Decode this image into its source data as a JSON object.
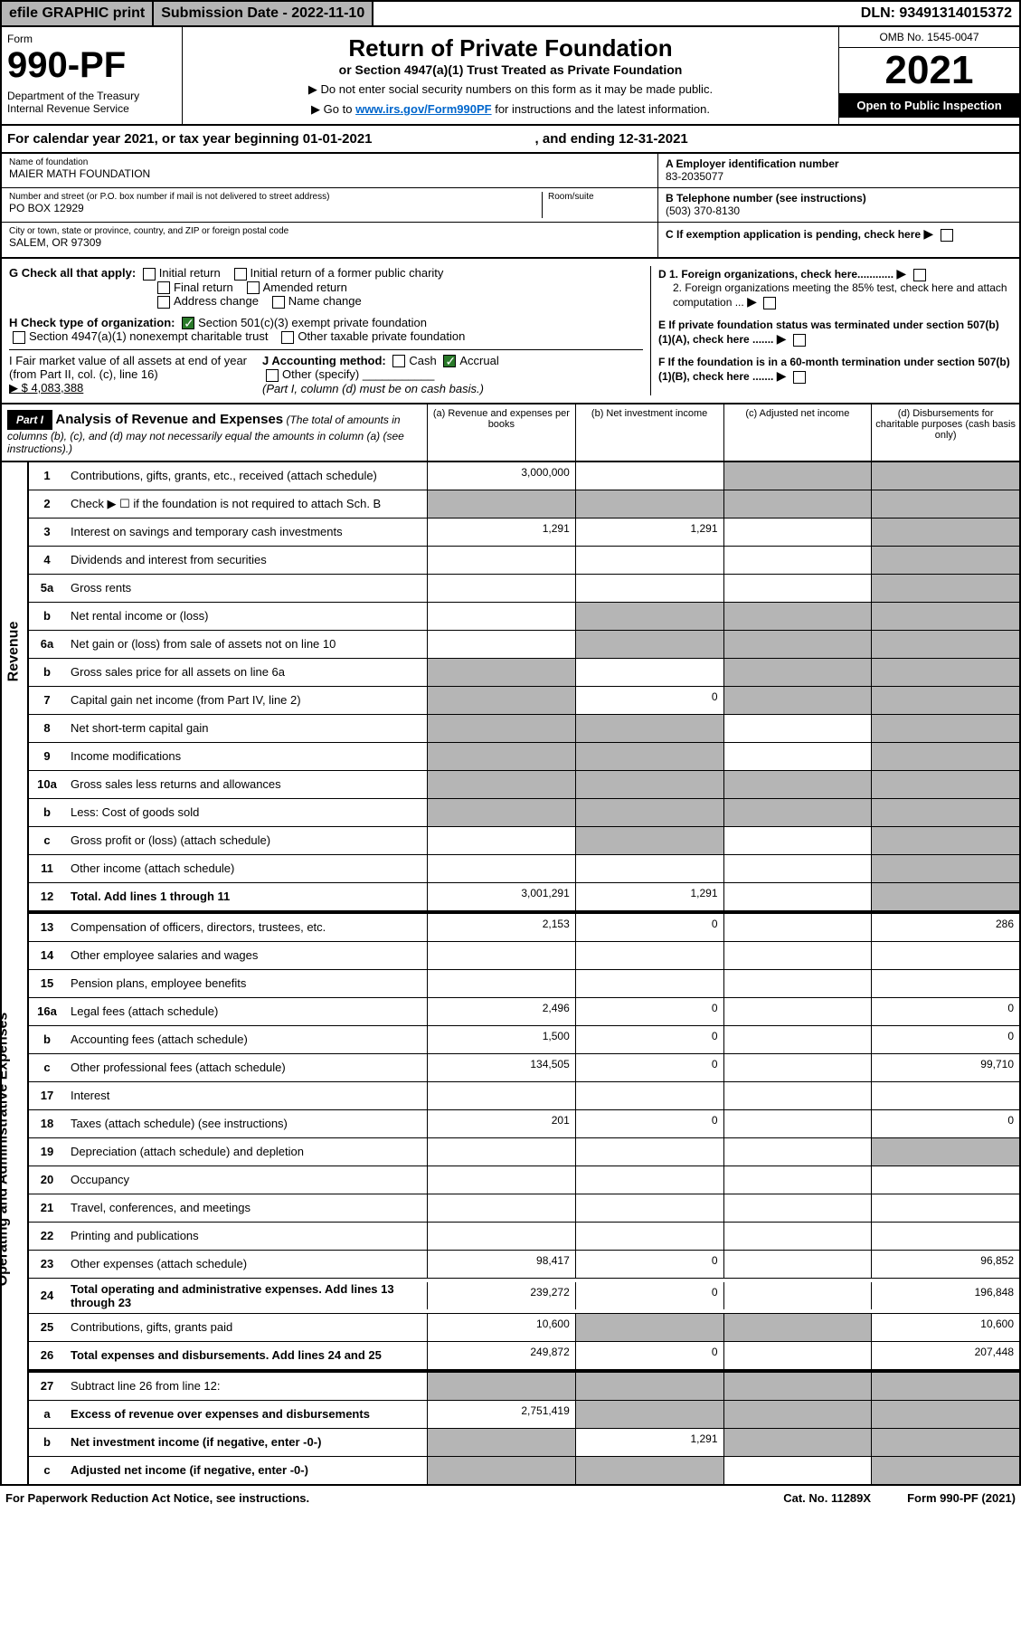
{
  "topbar": {
    "efile": "efile GRAPHIC print",
    "submission": "Submission Date - 2022-11-10",
    "dln": "DLN: 93491314015372"
  },
  "header": {
    "form_label": "Form",
    "form_no": "990-PF",
    "dept": "Department of the Treasury\nInternal Revenue Service",
    "title": "Return of Private Foundation",
    "subtitle": "or Section 4947(a)(1) Trust Treated as Private Foundation",
    "note1": "▶ Do not enter social security numbers on this form as it may be made public.",
    "note2_pre": "▶ Go to ",
    "note2_link": "www.irs.gov/Form990PF",
    "note2_post": " for instructions and the latest information.",
    "omb": "OMB No. 1545-0047",
    "year": "2021",
    "open": "Open to Public Inspection"
  },
  "calyear": {
    "pre": "For calendar year 2021, or tax year beginning 01-01-2021",
    "end": ", and ending 12-31-2021"
  },
  "info": {
    "name_label": "Name of foundation",
    "name": "MAIER MATH FOUNDATION",
    "addr_label": "Number and street (or P.O. box number if mail is not delivered to street address)",
    "addr": "PO BOX 12929",
    "room_label": "Room/suite",
    "city_label": "City or town, state or province, country, and ZIP or foreign postal code",
    "city": "SALEM, OR  97309",
    "a_label": "A Employer identification number",
    "a_val": "83-2035077",
    "b_label": "B Telephone number (see instructions)",
    "b_val": "(503) 370-8130",
    "c_label": "C If exemption application is pending, check here",
    "d1": "D 1. Foreign organizations, check here............",
    "d2": "2. Foreign organizations meeting the 85% test, check here and attach computation ...",
    "e": "E  If private foundation status was terminated under section 507(b)(1)(A), check here .......",
    "f": "F  If the foundation is in a 60-month termination under section 507(b)(1)(B), check here ......."
  },
  "checks": {
    "g": "G Check all that apply:",
    "g_opts": [
      "Initial return",
      "Initial return of a former public charity",
      "Final return",
      "Amended return",
      "Address change",
      "Name change"
    ],
    "h": "H Check type of organization:",
    "h1": "Section 501(c)(3) exempt private foundation",
    "h2": "Section 4947(a)(1) nonexempt charitable trust",
    "h3": "Other taxable private foundation",
    "i": "I Fair market value of all assets at end of year (from Part II, col. (c), line 16)",
    "i_val": "▶ $  4,083,388",
    "j": "J Accounting method:",
    "j_cash": "Cash",
    "j_accrual": "Accrual",
    "j_other": "Other (specify)",
    "j_note": "(Part I, column (d) must be on cash basis.)"
  },
  "part1": {
    "label": "Part I",
    "title": "Analysis of Revenue and Expenses",
    "note": "(The total of amounts in columns (b), (c), and (d) may not necessarily equal the amounts in column (a) (see instructions).)",
    "cols": {
      "a": "(a)  Revenue and expenses per books",
      "b": "(b)  Net investment income",
      "c": "(c)  Adjusted net income",
      "d": "(d)  Disbursements for charitable purposes (cash basis only)"
    }
  },
  "sides": {
    "revenue": "Revenue",
    "expenses": "Operating and Administrative Expenses"
  },
  "rows": [
    {
      "no": "1",
      "desc": "Contributions, gifts, grants, etc., received (attach schedule)",
      "a": "3,000,000",
      "b": "",
      "c": "grey",
      "d": "grey"
    },
    {
      "no": "2",
      "desc": "Check ▶ ☐ if the foundation is not required to attach Sch. B",
      "a": "grey",
      "b": "grey",
      "c": "grey",
      "d": "grey"
    },
    {
      "no": "3",
      "desc": "Interest on savings and temporary cash investments",
      "a": "1,291",
      "b": "1,291",
      "c": "",
      "d": "grey"
    },
    {
      "no": "4",
      "desc": "Dividends and interest from securities",
      "a": "",
      "b": "",
      "c": "",
      "d": "grey"
    },
    {
      "no": "5a",
      "desc": "Gross rents",
      "a": "",
      "b": "",
      "c": "",
      "d": "grey"
    },
    {
      "no": "b",
      "desc": "Net rental income or (loss)",
      "a": "",
      "b": "grey",
      "c": "grey",
      "d": "grey"
    },
    {
      "no": "6a",
      "desc": "Net gain or (loss) from sale of assets not on line 10",
      "a": "",
      "b": "grey",
      "c": "grey",
      "d": "grey"
    },
    {
      "no": "b",
      "desc": "Gross sales price for all assets on line 6a",
      "a": "grey",
      "b": "",
      "c": "grey",
      "d": "grey"
    },
    {
      "no": "7",
      "desc": "Capital gain net income (from Part IV, line 2)",
      "a": "grey",
      "b": "0",
      "c": "grey",
      "d": "grey"
    },
    {
      "no": "8",
      "desc": "Net short-term capital gain",
      "a": "grey",
      "b": "grey",
      "c": "",
      "d": "grey"
    },
    {
      "no": "9",
      "desc": "Income modifications",
      "a": "grey",
      "b": "grey",
      "c": "",
      "d": "grey"
    },
    {
      "no": "10a",
      "desc": "Gross sales less returns and allowances",
      "a": "grey",
      "b": "grey",
      "c": "grey",
      "d": "grey"
    },
    {
      "no": "b",
      "desc": "Less: Cost of goods sold",
      "a": "grey",
      "b": "grey",
      "c": "grey",
      "d": "grey"
    },
    {
      "no": "c",
      "desc": "Gross profit or (loss) (attach schedule)",
      "a": "",
      "b": "grey",
      "c": "",
      "d": "grey"
    },
    {
      "no": "11",
      "desc": "Other income (attach schedule)",
      "a": "",
      "b": "",
      "c": "",
      "d": "grey"
    },
    {
      "no": "12",
      "desc": "Total. Add lines 1 through 11",
      "bold": true,
      "a": "3,001,291",
      "b": "1,291",
      "c": "",
      "d": "grey"
    },
    {
      "no": "13",
      "desc": "Compensation of officers, directors, trustees, etc.",
      "a": "2,153",
      "b": "0",
      "c": "",
      "d": "286"
    },
    {
      "no": "14",
      "desc": "Other employee salaries and wages",
      "a": "",
      "b": "",
      "c": "",
      "d": ""
    },
    {
      "no": "15",
      "desc": "Pension plans, employee benefits",
      "a": "",
      "b": "",
      "c": "",
      "d": ""
    },
    {
      "no": "16a",
      "desc": "Legal fees (attach schedule)",
      "a": "2,496",
      "b": "0",
      "c": "",
      "d": "0"
    },
    {
      "no": "b",
      "desc": "Accounting fees (attach schedule)",
      "a": "1,500",
      "b": "0",
      "c": "",
      "d": "0"
    },
    {
      "no": "c",
      "desc": "Other professional fees (attach schedule)",
      "a": "134,505",
      "b": "0",
      "c": "",
      "d": "99,710"
    },
    {
      "no": "17",
      "desc": "Interest",
      "a": "",
      "b": "",
      "c": "",
      "d": ""
    },
    {
      "no": "18",
      "desc": "Taxes (attach schedule) (see instructions)",
      "a": "201",
      "b": "0",
      "c": "",
      "d": "0"
    },
    {
      "no": "19",
      "desc": "Depreciation (attach schedule) and depletion",
      "a": "",
      "b": "",
      "c": "",
      "d": "grey"
    },
    {
      "no": "20",
      "desc": "Occupancy",
      "a": "",
      "b": "",
      "c": "",
      "d": ""
    },
    {
      "no": "21",
      "desc": "Travel, conferences, and meetings",
      "a": "",
      "b": "",
      "c": "",
      "d": ""
    },
    {
      "no": "22",
      "desc": "Printing and publications",
      "a": "",
      "b": "",
      "c": "",
      "d": ""
    },
    {
      "no": "23",
      "desc": "Other expenses (attach schedule)",
      "a": "98,417",
      "b": "0",
      "c": "",
      "d": "96,852"
    },
    {
      "no": "24",
      "desc": "Total operating and administrative expenses. Add lines 13 through 23",
      "bold": true,
      "a": "239,272",
      "b": "0",
      "c": "",
      "d": "196,848"
    },
    {
      "no": "25",
      "desc": "Contributions, gifts, grants paid",
      "a": "10,600",
      "b": "grey",
      "c": "grey",
      "d": "10,600"
    },
    {
      "no": "26",
      "desc": "Total expenses and disbursements. Add lines 24 and 25",
      "bold": true,
      "a": "249,872",
      "b": "0",
      "c": "",
      "d": "207,448"
    },
    {
      "no": "27",
      "desc": "Subtract line 26 from line 12:",
      "a": "grey",
      "b": "grey",
      "c": "grey",
      "d": "grey"
    },
    {
      "no": "a",
      "desc": "Excess of revenue over expenses and disbursements",
      "bold": true,
      "a": "2,751,419",
      "b": "grey",
      "c": "grey",
      "d": "grey"
    },
    {
      "no": "b",
      "desc": "Net investment income (if negative, enter -0-)",
      "bold": true,
      "a": "grey",
      "b": "1,291",
      "c": "grey",
      "d": "grey"
    },
    {
      "no": "c",
      "desc": "Adjusted net income (if negative, enter -0-)",
      "bold": true,
      "a": "grey",
      "b": "grey",
      "c": "",
      "d": "grey"
    }
  ],
  "footer": {
    "left": "For Paperwork Reduction Act Notice, see instructions.",
    "mid": "Cat. No. 11289X",
    "right": "Form 990-PF (2021)"
  }
}
